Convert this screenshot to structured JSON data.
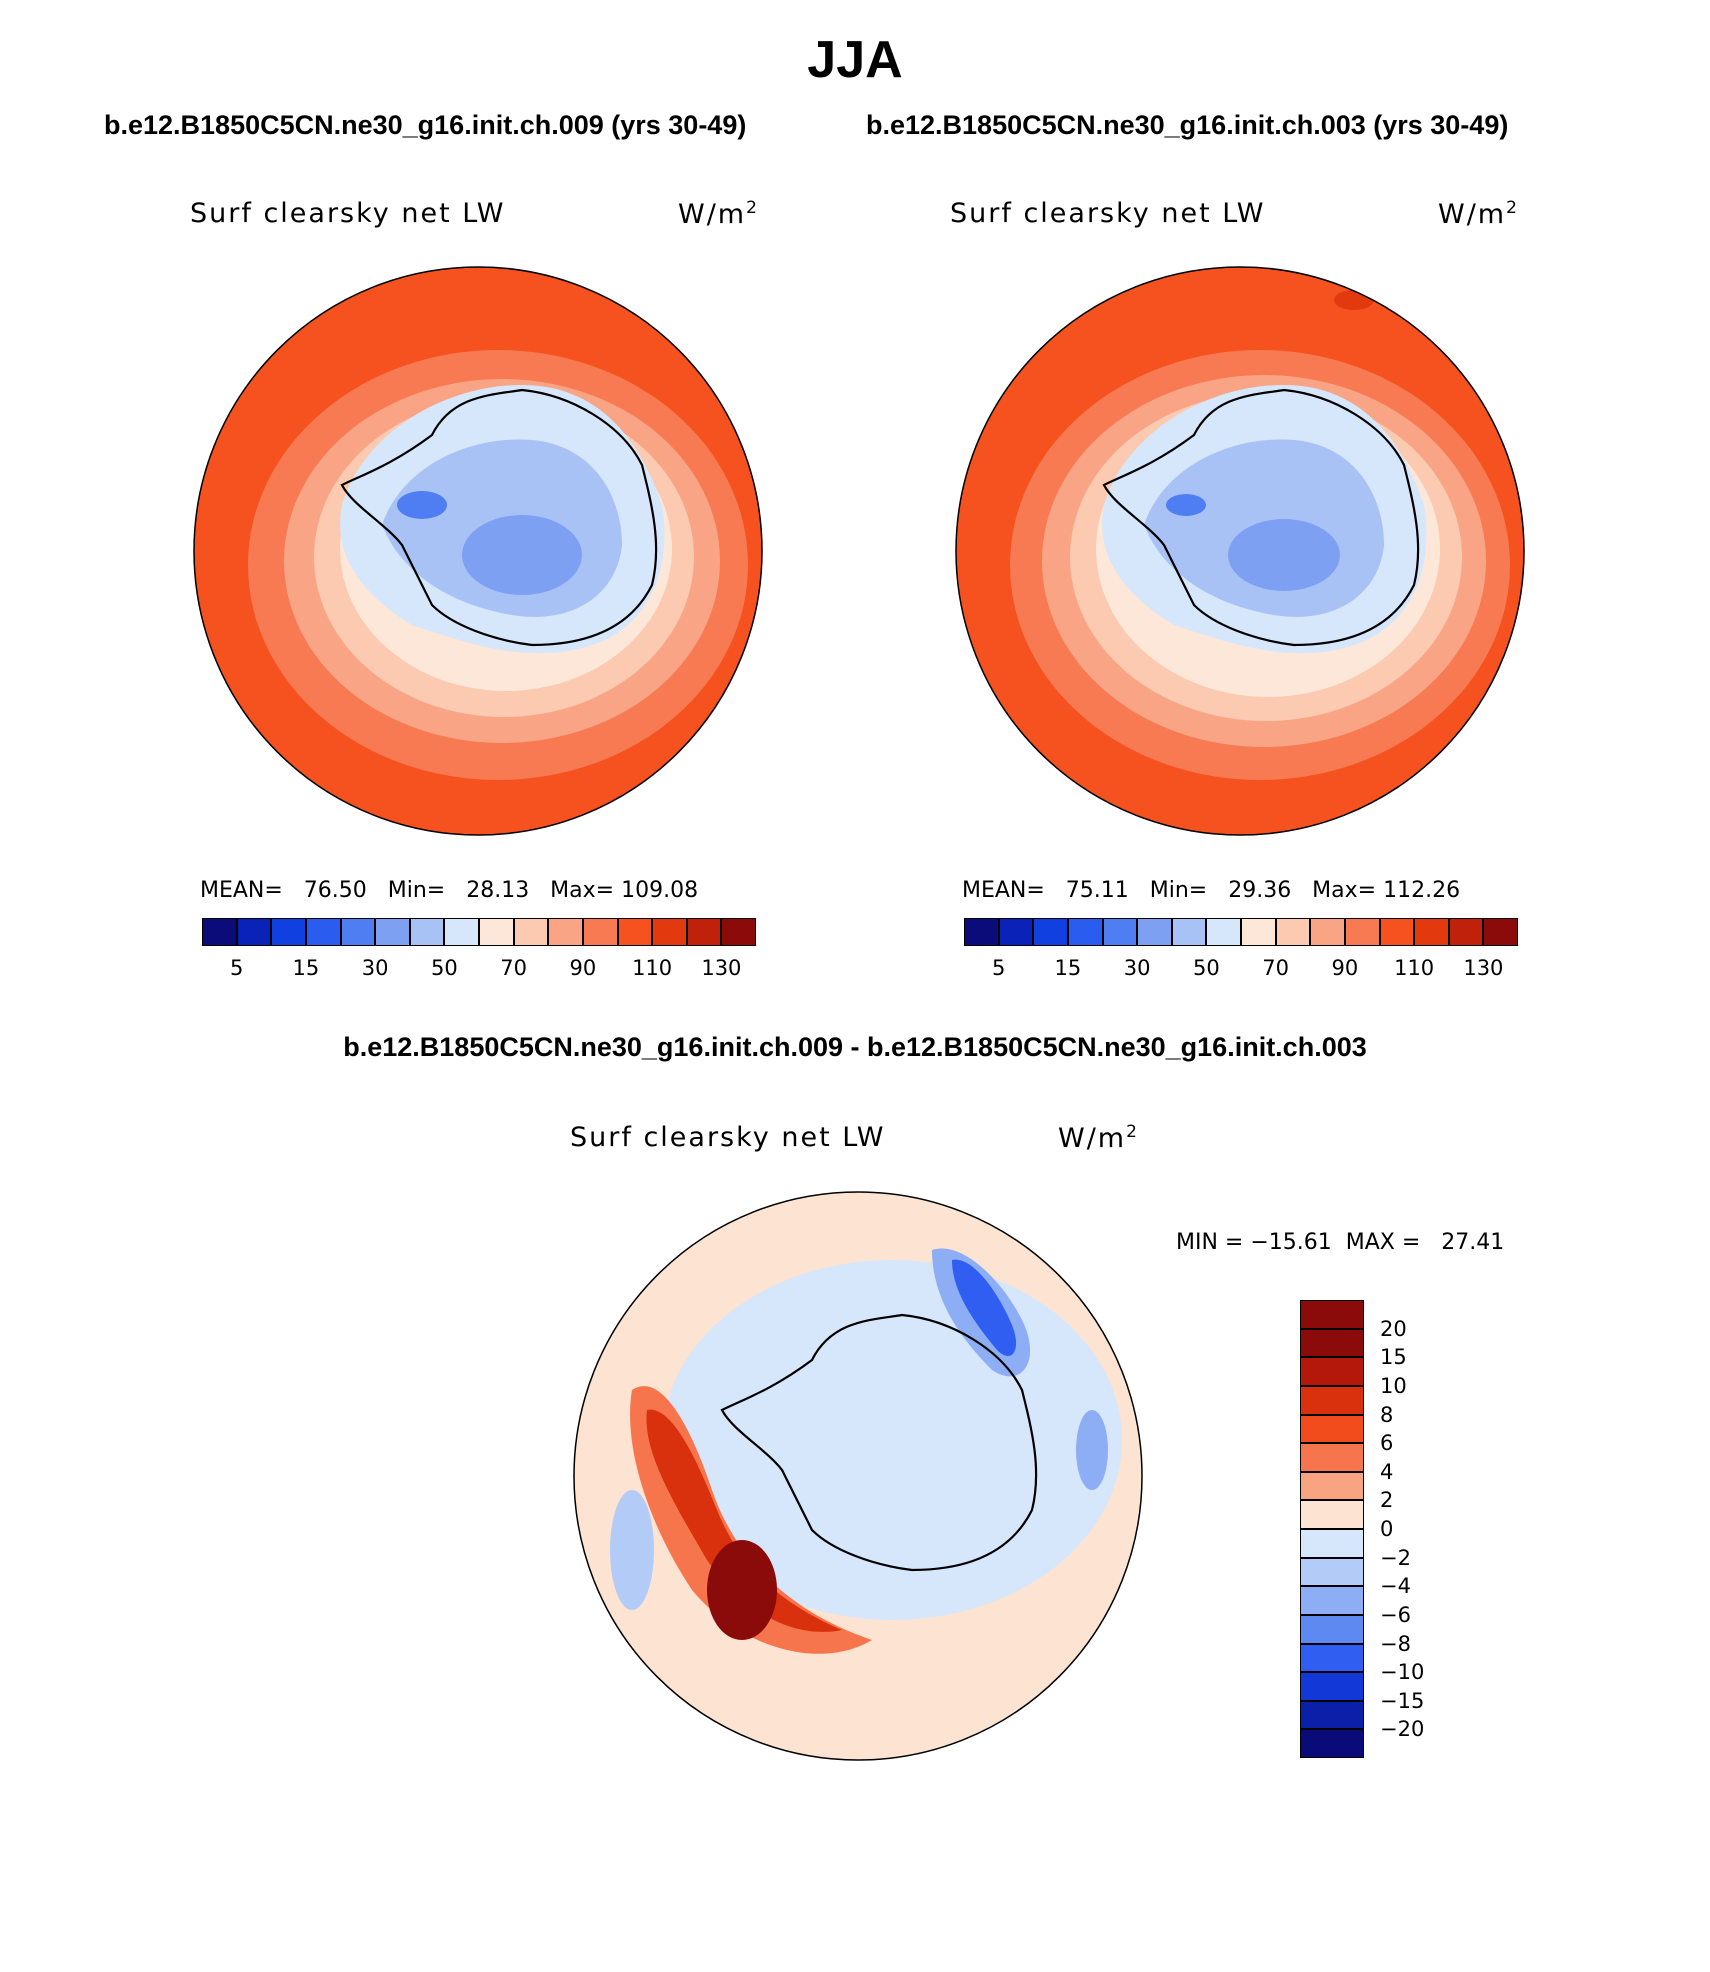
{
  "figure": {
    "season_title": "JJA",
    "case_a_title": "b.e12.B1850C5CN.ne30_g16.init.ch.009 (yrs 30-49)",
    "case_b_title": "b.e12.B1850C5CN.ne30_g16.init.ch.003 (yrs 30-49)",
    "diff_title": "b.e12.B1850C5CN.ne30_g16.init.ch.009 - b.e12.B1850C5CN.ne30_g16.init.ch.003"
  },
  "panels": [
    {
      "variable": "Surf clearsky net LW",
      "units_base": "W/m",
      "units_exp": "2",
      "stats_text": "MEAN=   76.50   Min=   28.13   Max= 109.08"
    },
    {
      "variable": "Surf clearsky net LW",
      "units_base": "W/m",
      "units_exp": "2",
      "stats_text": "MEAN=   75.11   Min=   29.36   Max= 112.26"
    },
    {
      "variable": "Surf clearsky net LW",
      "units_base": "W/m",
      "units_exp": "2",
      "stats_text": "MIN = −15.61  MAX =   27.41"
    }
  ],
  "colorbar_abs": {
    "colors": [
      "#0b0b7a",
      "#0a22b8",
      "#1040e0",
      "#2a5cf0",
      "#4f7ef2",
      "#7ea0f3",
      "#a9c2f5",
      "#d6e6fb",
      "#fde7d9",
      "#fcc9b1",
      "#f9a585",
      "#f77a52",
      "#f5521f",
      "#e23a0e",
      "#bf210a",
      "#8b0a0a"
    ],
    "tick_labels": [
      "5",
      "15",
      "30",
      "50",
      "70",
      "90",
      "110",
      "130"
    ]
  },
  "colorbar_diff": {
    "colors": [
      "#8b0a0a",
      "#b3180a",
      "#d9300d",
      "#f24c1c",
      "#f7754c",
      "#f9a480",
      "#fde3d2",
      "#d6e6fb",
      "#b3ccf7",
      "#8daef4",
      "#5e89f1",
      "#2f5ef0",
      "#1238d8",
      "#0b1fa8",
      "#0a0a78"
    ],
    "tick_labels": [
      "20",
      "15",
      "10",
      "8",
      "6",
      "4",
      "2",
      "0",
      "−2",
      "−4",
      "−6",
      "−8",
      "−10",
      "−15",
      "−20"
    ]
  },
  "chart_data": [
    {
      "type": "heatmap",
      "title": "b.e12.B1850C5CN.ne30_g16.init.ch.009 (yrs 30-49)",
      "projection": "south-polar-stereographic",
      "variable": "Surf clearsky net LW",
      "units": "W/m2",
      "levels": [
        5,
        10,
        15,
        20,
        30,
        40,
        50,
        60,
        70,
        80,
        90,
        100,
        110,
        120,
        130
      ],
      "mean": 76.5,
      "min": 28.13,
      "max": 109.08
    },
    {
      "type": "heatmap",
      "title": "b.e12.B1850C5CN.ne30_g16.init.ch.003 (yrs 30-49)",
      "projection": "south-polar-stereographic",
      "variable": "Surf clearsky net LW",
      "units": "W/m2",
      "levels": [
        5,
        10,
        15,
        20,
        30,
        40,
        50,
        60,
        70,
        80,
        90,
        100,
        110,
        120,
        130
      ],
      "mean": 75.11,
      "min": 29.36,
      "max": 112.26
    },
    {
      "type": "heatmap",
      "title": "b.e12.B1850C5CN.ne30_g16.init.ch.009 - b.e12.B1850C5CN.ne30_g16.init.ch.003",
      "projection": "south-polar-stereographic",
      "variable": "Surf clearsky net LW",
      "units": "W/m2",
      "levels": [
        -20,
        -15,
        -10,
        -8,
        -6,
        -4,
        -2,
        0,
        2,
        4,
        6,
        8,
        10,
        15,
        20
      ],
      "min": -15.61,
      "max": 27.41
    }
  ]
}
